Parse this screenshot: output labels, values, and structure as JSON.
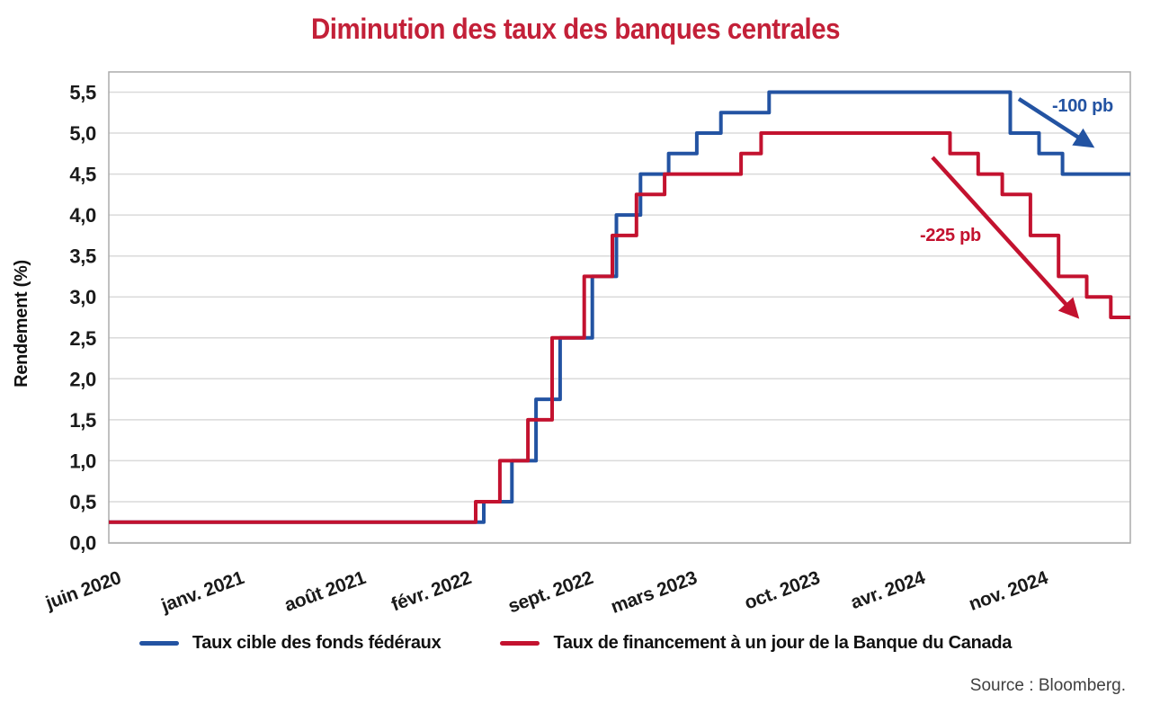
{
  "chart_data": {
    "type": "line",
    "line_style": "step",
    "title": "Diminution des taux des banques centrales",
    "ylabel": "Rendement (%)",
    "xlabel": "",
    "ylim": [
      0,
      5.75
    ],
    "ytick_interval": 0.5,
    "grid": "horizontal",
    "legend_position": "bottom",
    "x_domain": [
      "2020-06-01",
      "2025-04-15"
    ],
    "y_ticks": [
      {
        "value": 0.0,
        "label": "0,0"
      },
      {
        "value": 0.5,
        "label": "0,5"
      },
      {
        "value": 1.0,
        "label": "1,0"
      },
      {
        "value": 1.5,
        "label": "1,5"
      },
      {
        "value": 2.0,
        "label": "2,0"
      },
      {
        "value": 2.5,
        "label": "2,5"
      },
      {
        "value": 3.0,
        "label": "3,0"
      },
      {
        "value": 3.5,
        "label": "3,5"
      },
      {
        "value": 4.0,
        "label": "4,0"
      },
      {
        "value": 4.5,
        "label": "4,5"
      },
      {
        "value": 5.0,
        "label": "5,0"
      },
      {
        "value": 5.5,
        "label": "5,5"
      }
    ],
    "x_ticks": [
      {
        "date": "2020-06-01",
        "label": "juin 2020"
      },
      {
        "date": "2021-01-01",
        "label": "janv. 2021"
      },
      {
        "date": "2021-08-01",
        "label": "août 2021"
      },
      {
        "date": "2022-02-01",
        "label": "févr. 2022"
      },
      {
        "date": "2022-09-01",
        "label": "sept. 2022"
      },
      {
        "date": "2023-03-01",
        "label": "mars 2023"
      },
      {
        "date": "2023-10-01",
        "label": "oct. 2023"
      },
      {
        "date": "2024-04-01",
        "label": "avr. 2024"
      },
      {
        "date": "2024-11-01",
        "label": "nov. 2024"
      }
    ],
    "series": [
      {
        "name": "Taux cible des fonds fédéraux",
        "color_key": "fed_blue",
        "unit": "%",
        "points": [
          [
            "2020-06-01",
            0.25
          ],
          [
            "2022-03-16",
            0.5
          ],
          [
            "2022-05-04",
            1.0
          ],
          [
            "2022-06-15",
            1.75
          ],
          [
            "2022-07-27",
            2.5
          ],
          [
            "2022-09-21",
            3.25
          ],
          [
            "2022-11-02",
            4.0
          ],
          [
            "2022-12-14",
            4.5
          ],
          [
            "2023-02-01",
            4.75
          ],
          [
            "2023-03-22",
            5.0
          ],
          [
            "2023-05-03",
            5.25
          ],
          [
            "2023-07-26",
            5.5
          ],
          [
            "2024-09-18",
            5.0
          ],
          [
            "2024-11-07",
            4.75
          ],
          [
            "2024-12-18",
            4.5
          ]
        ]
      },
      {
        "name": "Taux de financement à un jour de la Banque du Canada",
        "color_key": "boc_red",
        "unit": "%",
        "points": [
          [
            "2020-06-01",
            0.25
          ],
          [
            "2022-03-02",
            0.5
          ],
          [
            "2022-04-13",
            1.0
          ],
          [
            "2022-06-01",
            1.5
          ],
          [
            "2022-07-13",
            2.5
          ],
          [
            "2022-09-07",
            3.25
          ],
          [
            "2022-10-26",
            3.75
          ],
          [
            "2022-12-07",
            4.25
          ],
          [
            "2023-01-25",
            4.5
          ],
          [
            "2023-06-07",
            4.75
          ],
          [
            "2023-07-12",
            5.0
          ],
          [
            "2024-06-05",
            4.75
          ],
          [
            "2024-07-24",
            4.5
          ],
          [
            "2024-09-04",
            4.25
          ],
          [
            "2024-10-23",
            3.75
          ],
          [
            "2024-12-11",
            3.25
          ],
          [
            "2025-01-29",
            3.0
          ],
          [
            "2025-03-12",
            2.75
          ]
        ]
      }
    ]
  },
  "annotations": {
    "fed": {
      "label": "-100 pb",
      "color_key": "fed_blue"
    },
    "boc": {
      "label": "-225 pb",
      "color_key": "boc_red"
    }
  },
  "legend": [
    {
      "label": "Taux cible des fonds fédéraux",
      "color_key": "fed_blue"
    },
    {
      "label": "Taux de financement à un jour de la Banque du Canada",
      "color_key": "boc_red"
    }
  ],
  "source": "Source : Bloomberg.",
  "colors": {
    "fed_blue": "#2353A2",
    "boc_red": "#C3122F",
    "title_red": "#C32038",
    "grid_gray": "#DADADA",
    "frame_gray": "#ABABAB",
    "axis_text": "#1A1A1A",
    "source_gray": "#404040"
  }
}
